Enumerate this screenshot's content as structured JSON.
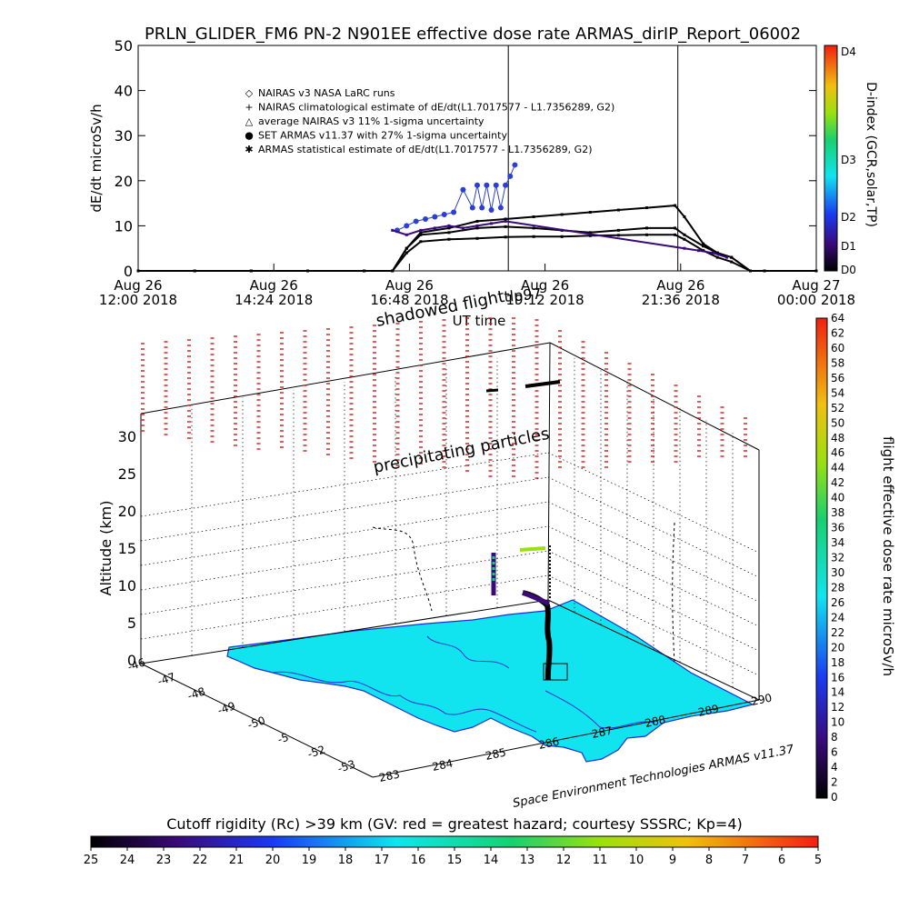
{
  "title": "PRLN_GLIDER_FM6 PN-2 N901EE effective dose rate ARMAS_dirIP_Report_06002",
  "top_panel": {
    "ylabel": "dE/dt microSv/h",
    "xlabel": "UT time",
    "right_axis_label": "D-index (GCR,solar,TP)",
    "right_ticks": [
      "D4",
      "D3",
      "D2",
      "D1",
      "D0"
    ],
    "vlines_at_minutes": [
      393,
      573
    ],
    "legend": [
      {
        "symbol": "◇",
        "text": "NAIRAS v3 NASA LaRC runs"
      },
      {
        "symbol": "+",
        "text": "NAIRAS climatological estimate of dE/dt(L1.7017577 - L1.7356289, G2)"
      },
      {
        "symbol": "△",
        "text": "average NAIRAS v3 11% 1-sigma uncertainty"
      },
      {
        "symbol": "●",
        "text": "SET ARMAS v11.37 with 27% 1-sigma uncertainty",
        "color": "#2030d0"
      },
      {
        "symbol": "✱",
        "text": "ARMAS statistical estimate of dE/dt(L1.7017577 - L1.7356289, G2)"
      }
    ]
  },
  "chart_data": {
    "type": "line",
    "title": "PRLN_GLIDER_FM6 PN-2 N901EE effective dose rate ARMAS_dirIP_Report_06002",
    "xlabel": "UT time",
    "ylabel": "dE/dt microSv/h",
    "ylim": [
      0,
      50
    ],
    "yticks": [
      0,
      10,
      20,
      30,
      40,
      50
    ],
    "xlim_minutes_from_aug26_1200": [
      0,
      720
    ],
    "xtick_labels": [
      [
        "Aug 26",
        "12:00 2018"
      ],
      [
        "Aug 26",
        "14:24 2018"
      ],
      [
        "Aug 26",
        "16:48 2018"
      ],
      [
        "Aug 26",
        "19:12 2018"
      ],
      [
        "Aug 26",
        "21:36 2018"
      ],
      [
        "Aug 27",
        "00:00 2018"
      ]
    ],
    "x_minutes": [
      0,
      60,
      120,
      180,
      240,
      270,
      285,
      300,
      330,
      360,
      390,
      420,
      450,
      480,
      510,
      540,
      570,
      580,
      600,
      615,
      630,
      650,
      665,
      720
    ],
    "series": [
      {
        "name": "NAIRAS v3 NASA LaRC runs",
        "color": "#000000",
        "values": [
          0,
          0,
          0,
          0,
          0,
          0,
          5,
          8,
          8.5,
          9.5,
          9.8,
          9.5,
          9,
          8.5,
          9,
          9.5,
          9.5,
          8,
          5.5,
          4,
          3,
          0,
          0,
          0
        ]
      },
      {
        "name": "NAIRAS climatological estimate of dE/dt(L1.7017577 - L1.7356289, G2)",
        "color": "#000000",
        "values": [
          0,
          0,
          0,
          0,
          0,
          0,
          4,
          6.5,
          7,
          7.2,
          7.5,
          7.6,
          7.6,
          7.8,
          7.9,
          8,
          8,
          7,
          4.5,
          3,
          2,
          0,
          0,
          0
        ]
      },
      {
        "name": "ARMAS statistical estimate of dE/dt(L1.7017577 - L1.7356289, G2)",
        "color": "#000000",
        "values": [
          0,
          0,
          0,
          0,
          0,
          0,
          5,
          8.5,
          9.5,
          11,
          11.5,
          12,
          12.5,
          13,
          13.5,
          14,
          14.5,
          12,
          6,
          4,
          3,
          0,
          0,
          0
        ]
      },
      {
        "name": "SET ARMAS v11.37 with 27% 1-sigma uncertainty",
        "color": "#2a3fd6",
        "x_minutes": [
          275,
          285,
          295,
          305,
          315,
          325,
          335,
          345,
          355,
          360,
          365,
          370,
          375,
          380,
          385,
          390,
          395,
          400
        ],
        "values": [
          9,
          10,
          11,
          11.5,
          12,
          12.5,
          13,
          18,
          14,
          19,
          14,
          19,
          13.5,
          19,
          14,
          19,
          21,
          23.5
        ]
      },
      {
        "name": "D-index trace (purple)",
        "color": "#3a0a7a",
        "x_minutes": [
          270,
          285,
          300,
          315,
          330,
          345,
          360,
          375,
          390,
          580,
          595,
          610,
          625
        ],
        "values": [
          9,
          8,
          9,
          9.5,
          10,
          9.5,
          10,
          10.5,
          11,
          5,
          4.5,
          4,
          3
        ]
      }
    ]
  },
  "bottom_panel": {
    "annotation_shadowed": "shadowed flight",
    "annotation_tlp": "tlp97",
    "annotation_precip": "precipitating particles",
    "ylabel": "Altitude (km)",
    "z_ticks": [
      "0",
      "5",
      "10",
      "15",
      "20",
      "25",
      "30"
    ],
    "lat_ticks": [
      "-46",
      "-47",
      "-48",
      "-49",
      "-50",
      "-5",
      "-52",
      "-53"
    ],
    "lon_ticks": [
      "283",
      "284",
      "285",
      "286",
      "287",
      "288",
      "289",
      "290"
    ],
    "credit": "Space Environment Technologies ARMAS v11.37",
    "right_colorbar_label": "flight effective dose rate microSv/h",
    "right_colorbar_ticks": [
      "0",
      "2",
      "4",
      "6",
      "8",
      "10",
      "12",
      "14",
      "16",
      "18",
      "20",
      "22",
      "24",
      "26",
      "28",
      "30",
      "32",
      "34",
      "36",
      "38",
      "40",
      "42",
      "44",
      "46",
      "48",
      "50",
      "52",
      "54",
      "56",
      "58",
      "60",
      "62",
      "64"
    ],
    "bottom_colorbar_label": "Cutoff rigidity (Rc) >39 km (GV: red = greatest hazard; courtesy SSSRC; Kp=4)",
    "bottom_colorbar_ticks": [
      "25",
      "24",
      "23",
      "22",
      "21",
      "20",
      "19",
      "18",
      "17",
      "16",
      "15",
      "14",
      "13",
      "12",
      "11",
      "10",
      "9",
      "8",
      "7",
      "6",
      "5"
    ]
  },
  "colors": {
    "ocean_fill": "#11e4ef",
    "coast": "#1a2fd8",
    "rc_marks": "#d01818",
    "flight_track": "#000000"
  }
}
